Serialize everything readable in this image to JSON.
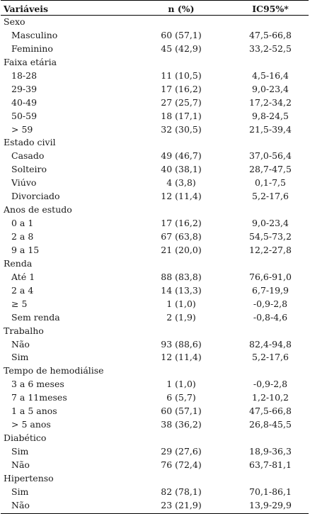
{
  "headers": [
    "Variáveis",
    "n (%)",
    "IC95%*"
  ],
  "rows": [
    {
      "label": "Sexo",
      "group": true
    },
    {
      "label": "Masculino",
      "n": "60 (57,1)",
      "ci": "47,5-66,8"
    },
    {
      "label": "Feminino",
      "n": "45 (42,9)",
      "ci": "33,2-52,5"
    },
    {
      "label": "Faixa etária",
      "group": true
    },
    {
      "label": "18-28",
      "n": "11 (10,5)",
      "ci": "4,5-16,4"
    },
    {
      "label": "29-39",
      "n": "17 (16,2)",
      "ci": "9,0-23,4"
    },
    {
      "label": "40-49",
      "n": "27 (25,7)",
      "ci": "17,2-34,2"
    },
    {
      "label": "50-59",
      "n": "18 (17,1)",
      "ci": "9,8-24,5"
    },
    {
      "label": "> 59",
      "n": "32 (30,5)",
      "ci": "21,5-39,4"
    },
    {
      "label": "Estado civil",
      "group": true
    },
    {
      "label": "Casado",
      "n": "49 (46,7)",
      "ci": "37,0-56,4"
    },
    {
      "label": "Solteiro",
      "n": "40 (38,1)",
      "ci": "28,7-47,5"
    },
    {
      "label": "Viúvo",
      "n": "4 (3,8)",
      "ci": "0,1-7,5"
    },
    {
      "label": "Divorciado",
      "n": "12 (11,4)",
      "ci": "5,2-17,6"
    },
    {
      "label": "Anos de estudo",
      "group": true
    },
    {
      "label": "0 a 1",
      "n": "17 (16,2)",
      "ci": "9,0-23,4"
    },
    {
      "label": "2 a 8",
      "n": "67 (63,8)",
      "ci": "54,5-73,2"
    },
    {
      "label": "9 a 15",
      "n": "21 (20,0)",
      "ci": "12,2-27,8"
    },
    {
      "label": "Renda",
      "group": true
    },
    {
      "label": "Até 1",
      "n": "88 (83,8)",
      "ci": "76,6-91,0"
    },
    {
      "label": "2 a 4",
      "n": "14 (13,3)",
      "ci": "6,7-19,9"
    },
    {
      "label": "≥ 5",
      "n": "1 (1,0)",
      "ci": "-0,9-2,8"
    },
    {
      "label": "Sem renda",
      "n": "2 (1,9)",
      "ci": "-0,8-4,6"
    },
    {
      "label": "Trabalho",
      "group": true
    },
    {
      "label": "Não",
      "n": "93 (88,6)",
      "ci": "82,4-94,8"
    },
    {
      "label": "Sim",
      "n": "12 (11,4)",
      "ci": "5,2-17,6"
    },
    {
      "label": "Tempo de hemodiálise",
      "group": true
    },
    {
      "label": "3 a 6 meses",
      "n": "1 (1,0)",
      "ci": "-0,9-2,8"
    },
    {
      "label": "7 a 11meses",
      "n": "6 (5,7)",
      "ci": "1,2-10,2"
    },
    {
      "label": "1 a 5 anos",
      "n": "60 (57,1)",
      "ci": "47,5-66,8"
    },
    {
      "label": "> 5 anos",
      "n": "38 (36,2)",
      "ci": "26,8-45,5"
    },
    {
      "label": "Diabético",
      "group": true
    },
    {
      "label": "Sim",
      "n": "29 (27,6)",
      "ci": "18,9-36,3"
    },
    {
      "label": "Não",
      "n": "76 (72,4)",
      "ci": "63,7-81,1"
    },
    {
      "label": "Hipertenso",
      "group": true
    },
    {
      "label": "Sim",
      "n": "82 (78,1)",
      "ci": "70,1-86,1"
    },
    {
      "label": "Não",
      "n": "23 (21,9)",
      "ci": "13,9-29,9"
    }
  ]
}
